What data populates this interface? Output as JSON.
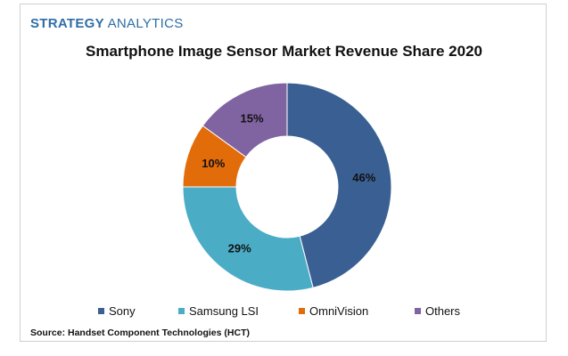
{
  "brand": {
    "part1": "STRATEGY",
    "part2": "ANALYTICS"
  },
  "source": "Source: Handset Component Technologies (HCT)",
  "chart_data": {
    "type": "pie",
    "donut": true,
    "title": "Smartphone Image Sensor Market Revenue Share 2020",
    "categories": [
      "Sony",
      "Samsung LSI",
      "OmniVision",
      "Others"
    ],
    "values": [
      46,
      29,
      10,
      15
    ],
    "data_labels": [
      "46%",
      "29%",
      "10%",
      "15%"
    ],
    "colors": [
      "#3a5f92",
      "#4bacc6",
      "#e36c0a",
      "#8064a2"
    ],
    "legend_position": "bottom"
  }
}
